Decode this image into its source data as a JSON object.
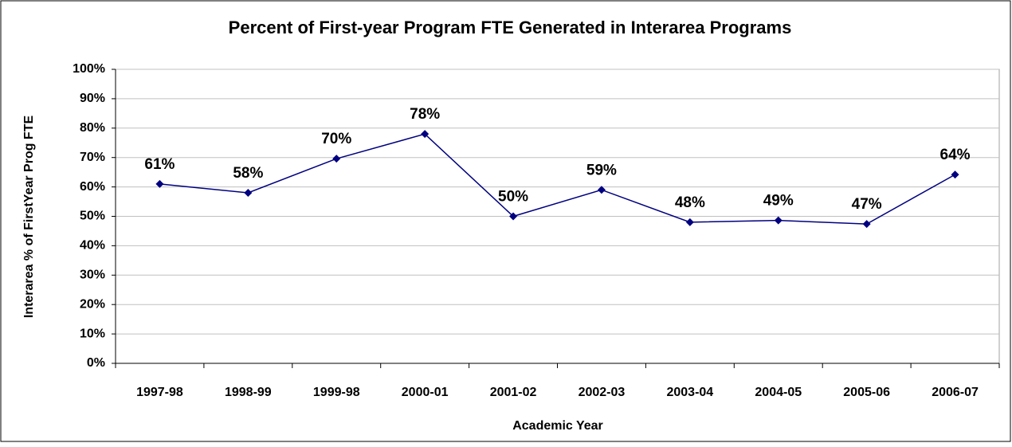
{
  "chart_data": {
    "type": "line",
    "title": "Percent of First-year Program FTE Generated in Interarea Programs",
    "x_label": "Academic Year",
    "y_label": "Interarea % of FirstYear Prog FTE",
    "categories": [
      "1997-98",
      "1998-99",
      "1999-98",
      "2000-01",
      "2001-02",
      "2002-03",
      "2003-04",
      "2004-05",
      "2005-06",
      "2006-07"
    ],
    "series": [
      {
        "color": "#000080",
        "values": [
          61,
          58,
          69.6,
          78,
          50,
          59,
          48,
          48.6,
          47.4,
          64.2
        ],
        "value_labels": [
          "61%",
          "58%",
          "70%",
          "78%",
          "50%",
          "59%",
          "48%",
          "49%",
          "47%",
          "64%"
        ]
      }
    ],
    "ylim": [
      0,
      100
    ],
    "yticks": [
      {
        "value": 0,
        "label": "0%"
      },
      {
        "value": 10,
        "label": "10%"
      },
      {
        "value": 20,
        "label": "20%"
      },
      {
        "value": 30,
        "label": "30%"
      },
      {
        "value": 40,
        "label": "40%"
      },
      {
        "value": 50,
        "label": "50%"
      },
      {
        "value": 60,
        "label": "60%"
      },
      {
        "value": 70,
        "label": "70%"
      },
      {
        "value": 80,
        "label": "80%"
      },
      {
        "value": 90,
        "label": "90%"
      },
      {
        "value": 100,
        "label": "100%"
      }
    ],
    "grid": true
  }
}
